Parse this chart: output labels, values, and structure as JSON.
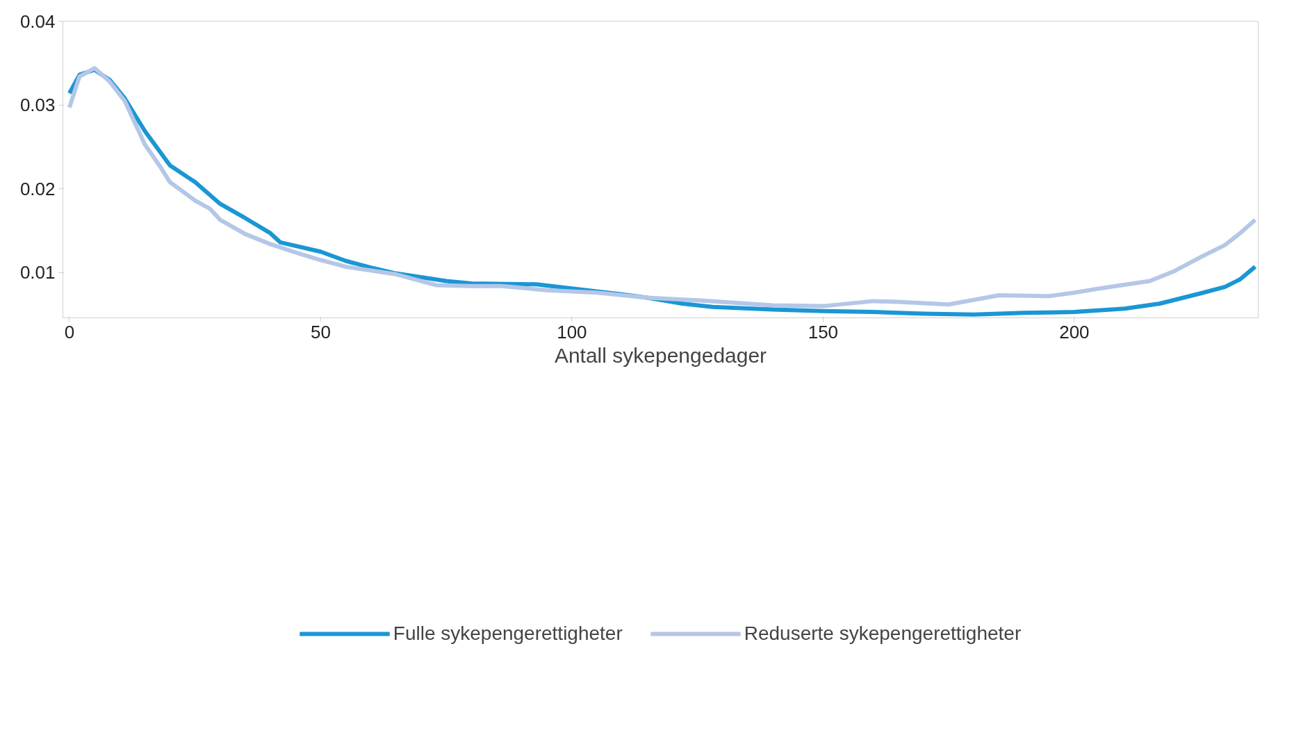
{
  "chart_data": {
    "type": "line",
    "xlabel": "Antall sykepengedager",
    "xlim": [
      -1.3,
      236.6
    ],
    "ylim": [
      0.0046,
      0.04
    ],
    "xticks": [
      0,
      50,
      100,
      150,
      200
    ],
    "yticks": [
      {
        "value": 0.01,
        "label": "0.01"
      },
      {
        "value": 0.02,
        "label": "0.02"
      },
      {
        "value": 0.03,
        "label": "0.03"
      },
      {
        "value": 0.04,
        "label": "0.04"
      }
    ],
    "grid": false,
    "legend": "bottom",
    "marker": "none",
    "line_style": "solid",
    "series": [
      {
        "name": "Fulle sykepengerettigheter",
        "color": "#1a96d4",
        "x": [
          0,
          2,
          5,
          8,
          11,
          15,
          20,
          25,
          30,
          35,
          40,
          42,
          50,
          55,
          60,
          65,
          75,
          80,
          93,
          100,
          110,
          115,
          122,
          128,
          140,
          150,
          160,
          170,
          180,
          190,
          200,
          210,
          217,
          225,
          230,
          233,
          236
        ],
        "values": [
          0.0314,
          0.0336,
          0.0342,
          0.033,
          0.0308,
          0.0269,
          0.0228,
          0.0208,
          0.0182,
          0.0165,
          0.0147,
          0.0136,
          0.0125,
          0.0114,
          0.0106,
          0.0099,
          0.009,
          0.0087,
          0.0086,
          0.0081,
          0.0074,
          0.007,
          0.0063,
          0.0059,
          0.0056,
          0.0054,
          0.0053,
          0.0051,
          0.005,
          0.0052,
          0.0053,
          0.0057,
          0.0063,
          0.0075,
          0.0083,
          0.0092,
          0.0107
        ]
      },
      {
        "name": "Reduserte sykepengerettigheter",
        "color": "#b4c7e7",
        "x": [
          0,
          2,
          5,
          8,
          11,
          15,
          18,
          20,
          25,
          28,
          30,
          35,
          40,
          45,
          50,
          55,
          65,
          73,
          80,
          86,
          95,
          105,
          115,
          125,
          140,
          150,
          160,
          165,
          175,
          185,
          195,
          200,
          205,
          215,
          220,
          225,
          230,
          233,
          236
        ],
        "values": [
          0.0297,
          0.0334,
          0.0344,
          0.0328,
          0.0305,
          0.0253,
          0.0227,
          0.0208,
          0.0186,
          0.0176,
          0.0163,
          0.0146,
          0.0134,
          0.0124,
          0.0115,
          0.0107,
          0.0098,
          0.0085,
          0.0084,
          0.0084,
          0.0079,
          0.0076,
          0.007,
          0.0067,
          0.0061,
          0.006,
          0.0066,
          0.0065,
          0.0062,
          0.0073,
          0.0072,
          0.0076,
          0.0081,
          0.009,
          0.0102,
          0.0118,
          0.0133,
          0.0147,
          0.0163
        ]
      }
    ]
  }
}
